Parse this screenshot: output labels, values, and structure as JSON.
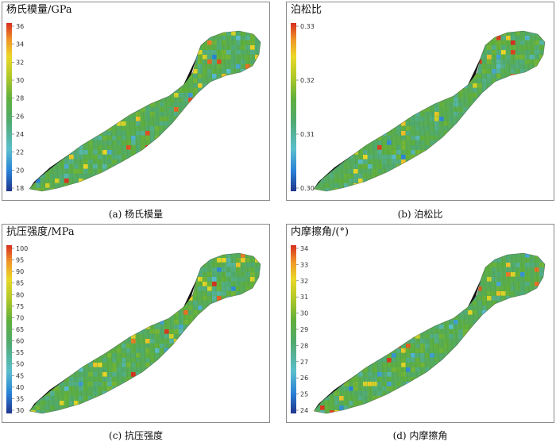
{
  "panels": [
    {
      "title": "杨氏模量/GPa",
      "caption": "(a) 杨氏模量",
      "ticks": [
        "36",
        "34",
        "32",
        "30",
        "28",
        "26",
        "24",
        "22",
        "20",
        "18"
      ]
    },
    {
      "title": "泊松比",
      "caption": "(b) 泊松比",
      "ticks": [
        "0.33",
        "0.32",
        "0.31",
        "0.30"
      ]
    },
    {
      "title": "抗压强度/MPa",
      "caption": "(c) 抗压强度",
      "ticks": [
        "100",
        "95",
        "90",
        "85",
        "80",
        "75",
        "70",
        "65",
        "60",
        "55",
        "50",
        "45",
        "40",
        "35",
        "30"
      ]
    },
    {
      "title": "内摩擦角/(°)",
      "caption": "(d) 内摩擦角",
      "ticks": [
        "34",
        "33",
        "32",
        "31",
        "30",
        "29",
        "28",
        "27",
        "26",
        "25",
        "24"
      ]
    }
  ]
}
